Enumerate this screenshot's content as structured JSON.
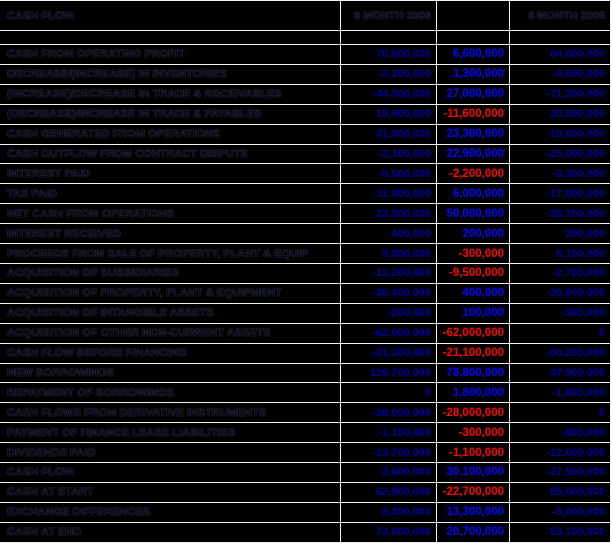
{
  "header": {
    "title": "CASH FLOW",
    "col_2006": "6 MONTH 2006",
    "col_delta": "",
    "col_2005": "6 MONTH 2005"
  },
  "colors": {
    "background": "#000000",
    "gridline": "#f2f2f2",
    "label_text": "#06061c",
    "value_navy": "#00009a",
    "delta_positive": "#0404ff",
    "delta_negative": "#ff0404",
    "marker_green": "#00b050"
  },
  "markers": [
    {
      "row_index": 0,
      "column": "delta"
    },
    {
      "row_index": 8,
      "column": "2006"
    },
    {
      "row_index": 15,
      "column": "2005"
    },
    {
      "row_index": 21,
      "column": "delta"
    },
    {
      "row_index": 24,
      "column": "delta"
    }
  ],
  "rows": [
    {
      "label": "CASH FROM OPERATING PROFIT",
      "v2006": "70,600,000",
      "delta": "6,600,000",
      "v2005": "64,000,000"
    },
    {
      "label": "DECREASE/(INCREASE) IN INVENTORIES",
      "v2006": "-3,300,000",
      "delta": "1,300,000",
      "v2005": "-4,600,000"
    },
    {
      "label": "(INCREASE)/DECREASE IN TRADE & RECEIVABLES",
      "v2006": "-44,300,000",
      "delta": "27,000,000",
      "v2005": "-71,300,000"
    },
    {
      "label": "(DECREASE)/INCREASE IN TRADE & PAYABLES",
      "v2006": "18,900,000",
      "delta": "-11,600,000",
      "v2005": "30,500,000"
    },
    {
      "label": "CASH GENERATED FROM OPERATIONS",
      "v2006": "41,900,000",
      "delta": "23,300,000",
      "v2005": "18,600,000"
    },
    {
      "label": "CASH OUTFLOW FROM CONTRACT DISPUTE",
      "v2006": "-2,100,000",
      "delta": "22,900,000",
      "v2005": "-25,000,000"
    },
    {
      "label": "INTEREST PAID",
      "v2006": "-5,500,000",
      "delta": "-2,200,000",
      "v2005": "-3,300,000"
    },
    {
      "label": "TAX PAID",
      "v2006": "-11,000,000",
      "delta": "6,000,000",
      "v2005": "-17,000,000"
    },
    {
      "label": "NET CASH FROM OPERATIONS",
      "v2006": "23,300,000",
      "delta": "50,000,000",
      "v2005": "-26,700,000"
    },
    {
      "label": "INTEREST RECEIVED",
      "v2006": "400,000",
      "delta": "200,000",
      "v2005": "200,000"
    },
    {
      "label": "PROCEEDS FROM SALE OF PROPERTY, PLANT & EQUIP",
      "v2006": "5,800,000",
      "delta": "-300,000",
      "v2005": "6,100,000"
    },
    {
      "label": "ACQUISITION OF SUBSIDIARIES",
      "v2006": "-12,200,000",
      "delta": "-9,500,000",
      "v2005": "-2,700,000"
    },
    {
      "label": "ACQUISITION OF PROPERTY, PLANT & EQUIPMENT",
      "v2006": "-36,400,000",
      "delta": "400,000",
      "v2005": "-36,800,000"
    },
    {
      "label": "ACQUISITION OF INTANGIBLE ASSETS",
      "v2006": "-200,000",
      "delta": "100,000",
      "v2005": "-300,000"
    },
    {
      "label": "ACQUISITION OF OTHER NON-CURRENT ASSETS",
      "v2006": "-62,000,000",
      "delta": "-62,000,000",
      "v2005": "0"
    },
    {
      "label": "CASH FLOW BEFORE FINANCING",
      "v2006": "-81,300,000",
      "delta": "-21,100,000",
      "v2005": "-60,200,000"
    },
    {
      "label": "NEW BORROWINGS",
      "v2006": "126,700,000",
      "delta": "78,800,000",
      "v2005": "47,900,000"
    },
    {
      "label": "REPAYMENT OF BORROWINGS",
      "v2006": "0",
      "delta": "1,800,000",
      "v2005": "-1,800,000"
    },
    {
      "label": "CASH FLOWS FROM DERIVATIVE INSTRUMENTS",
      "v2006": "-28,000,000",
      "delta": "-28,000,000",
      "v2005": "0"
    },
    {
      "label": "PAYMENT OF FINANCE LEASE LIABILITIES",
      "v2006": "-1,100,000",
      "delta": "-300,000",
      "v2005": "-800,000"
    },
    {
      "label": "DIVIDENDS PAID",
      "v2006": "-13,700,000",
      "delta": "-1,100,000",
      "v2005": "-12,600,000"
    },
    {
      "label": "CASH FLOW",
      "v2006": "2,600,000",
      "delta": "30,100,000",
      "v2005": "-27,500,000"
    },
    {
      "label": "CASH AT START",
      "v2006": "62,900,000",
      "delta": "-22,700,000",
      "v2005": "85,600,000"
    },
    {
      "label": "EXCHANGE DIFFERENCES",
      "v2006": "8,300,000",
      "delta": "13,300,000",
      "v2005": "-5,000,000"
    },
    {
      "label": "CASH AT END",
      "v2006": "73,800,000",
      "delta": "20,700,000",
      "v2005": "53,100,000"
    }
  ]
}
